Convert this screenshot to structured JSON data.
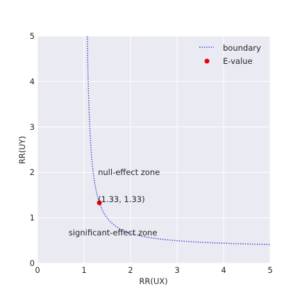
{
  "chart_data": {
    "type": "line",
    "xlabel": "RR(UX)",
    "ylabel": "RR(UY)",
    "xlim": [
      0,
      5
    ],
    "ylim": [
      0,
      5
    ],
    "xticks": [
      "0",
      "1",
      "2",
      "3",
      "4",
      "5"
    ],
    "yticks": [
      "0",
      "1",
      "2",
      "3",
      "4",
      "5"
    ],
    "grid": true,
    "legend_position": "top-right",
    "series": [
      {
        "name": "boundary",
        "kind": "dotted-line",
        "color": "#2b3bd6",
        "formula": "y = 0.33*x/(x-1)",
        "x_range": [
          1.0707,
          5
        ]
      },
      {
        "name": "E-value",
        "kind": "point",
        "color": "#e8000b",
        "x": 1.33,
        "y": 1.33,
        "label": "(1.33, 1.33)"
      }
    ],
    "annotations": [
      {
        "text": "null-effect zone",
        "x": 1.3,
        "y": 2.0
      },
      {
        "text": "significant-effect zone",
        "x": 0.67,
        "y": 0.67
      }
    ],
    "style": {
      "plot_background": "#eaeaf2",
      "grid_color": "#ffffff"
    }
  }
}
